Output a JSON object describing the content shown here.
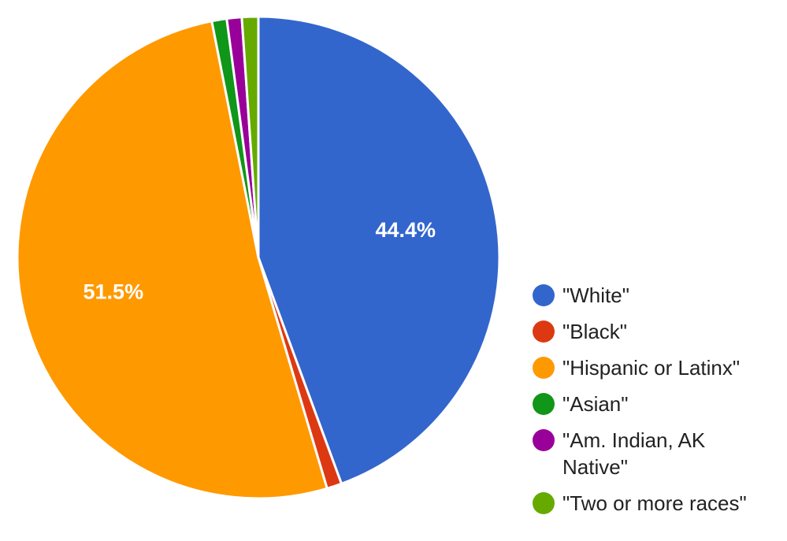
{
  "chart_data": {
    "type": "pie",
    "title": "",
    "slices": [
      {
        "label": "\"White\"",
        "value": 44.4,
        "color": "#3366cc",
        "data_label": "44.4%"
      },
      {
        "label": "\"Black\"",
        "value": 1.0,
        "color": "#dc3912",
        "data_label": ""
      },
      {
        "label": "\"Hispanic or Latinx\"",
        "value": 51.5,
        "color": "#ff9900",
        "data_label": "51.5%"
      },
      {
        "label": "\"Asian\"",
        "value": 1.0,
        "color": "#109618",
        "data_label": ""
      },
      {
        "label": "\"Am. Indian, AK Native\"",
        "value": 1.0,
        "color": "#990099",
        "data_label": ""
      },
      {
        "label": "\"Two or more races\"",
        "value": 1.1,
        "color": "#66aa00",
        "data_label": ""
      }
    ],
    "start_angle": "12 o'clock",
    "direction": "clockwise",
    "legend_position": "right"
  }
}
